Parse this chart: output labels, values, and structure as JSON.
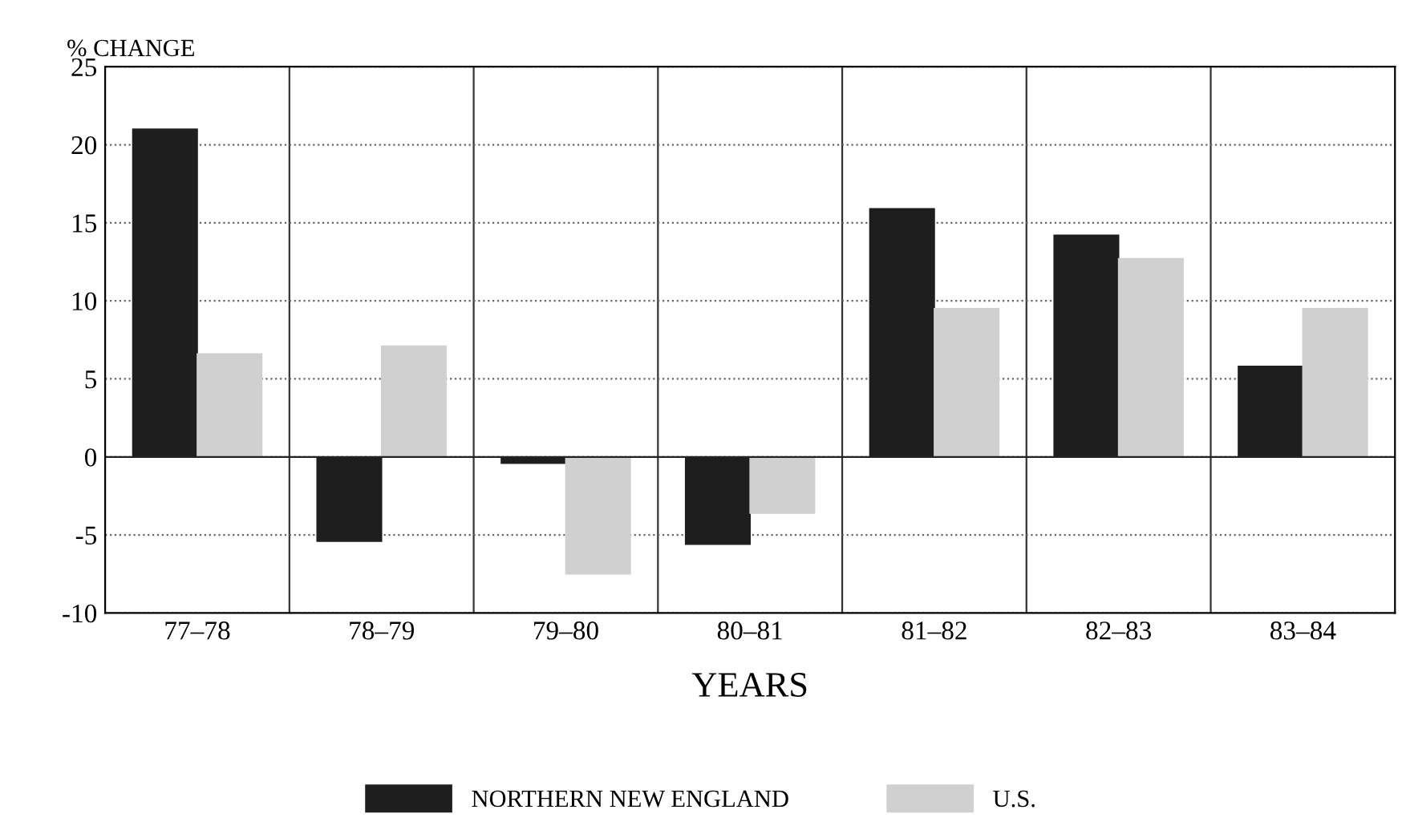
{
  "chart_data": {
    "type": "bar",
    "xlabel": "YEARS",
    "ylabel": "% CHANGE",
    "categories": [
      "77–78",
      "78–79",
      "79–80",
      "80–81",
      "81–82",
      "82–83",
      "83–84"
    ],
    "series": [
      {
        "name": "NORTHERN NEW ENGLAND",
        "color": "#1e1e1e",
        "values": [
          21.0,
          -5.4,
          -0.4,
          -5.6,
          15.9,
          14.2,
          5.8
        ]
      },
      {
        "name": "U.S.",
        "color": "#d0d0d0",
        "values": [
          6.6,
          7.1,
          -7.5,
          -3.6,
          9.5,
          12.7,
          9.5
        ]
      }
    ],
    "ylim": [
      -10,
      25
    ],
    "yticks": [
      -10,
      -5,
      0,
      5,
      10,
      15,
      20,
      25
    ],
    "grid": true,
    "legend": "bottom"
  }
}
